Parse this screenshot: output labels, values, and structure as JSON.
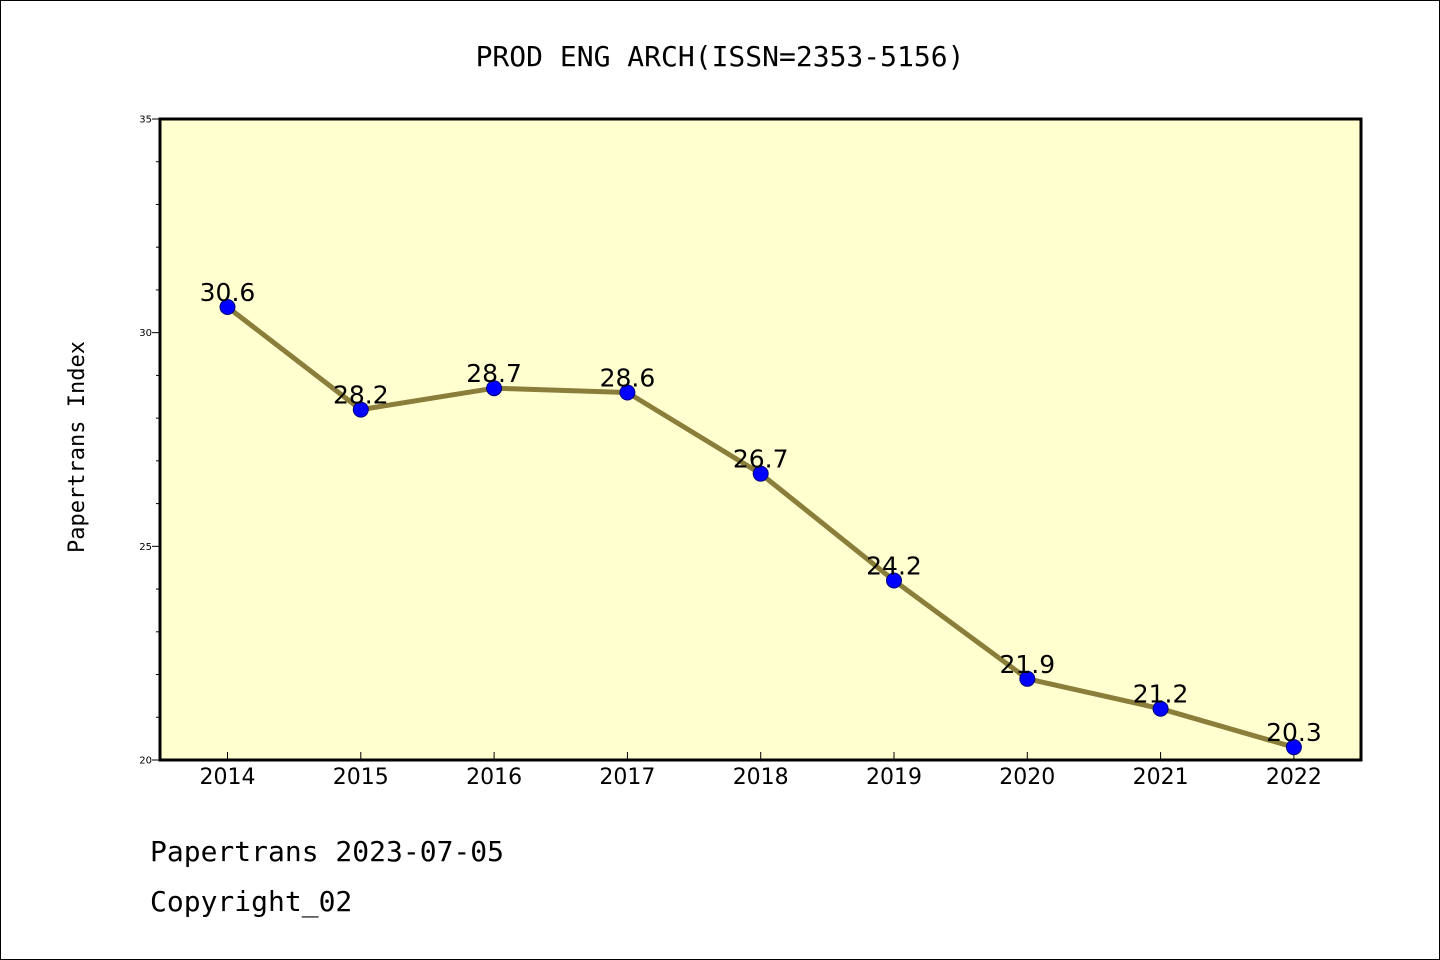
{
  "chart_data": {
    "type": "line",
    "title": "PROD ENG ARCH(ISSN=2353-5156)",
    "xlabel": "",
    "ylabel": "Papertrans Index",
    "categories": [
      "2014",
      "2015",
      "2016",
      "2017",
      "2018",
      "2019",
      "2020",
      "2021",
      "2022"
    ],
    "series": [
      {
        "values": [
          30.6,
          28.2,
          28.7,
          28.6,
          26.7,
          24.2,
          21.9,
          21.2,
          20.3
        ]
      }
    ],
    "data_labels": [
      "30.6",
      "28.2",
      "28.7",
      "28.6",
      "26.7",
      "24.2",
      "21.9",
      "21.2",
      "20.3"
    ],
    "ylim": [
      20,
      35
    ],
    "y_ticks": [
      "20",
      "25",
      "30",
      "35"
    ],
    "grid": false,
    "legend": "none",
    "colors": {
      "plot_background": "#FFFFD0",
      "line": "#8B7D3A",
      "marker": "#0000FF",
      "axis": "#000000"
    }
  },
  "footer": {
    "date_text": "Papertrans 2023-07-05",
    "copyright_text": "Copyright_02"
  }
}
